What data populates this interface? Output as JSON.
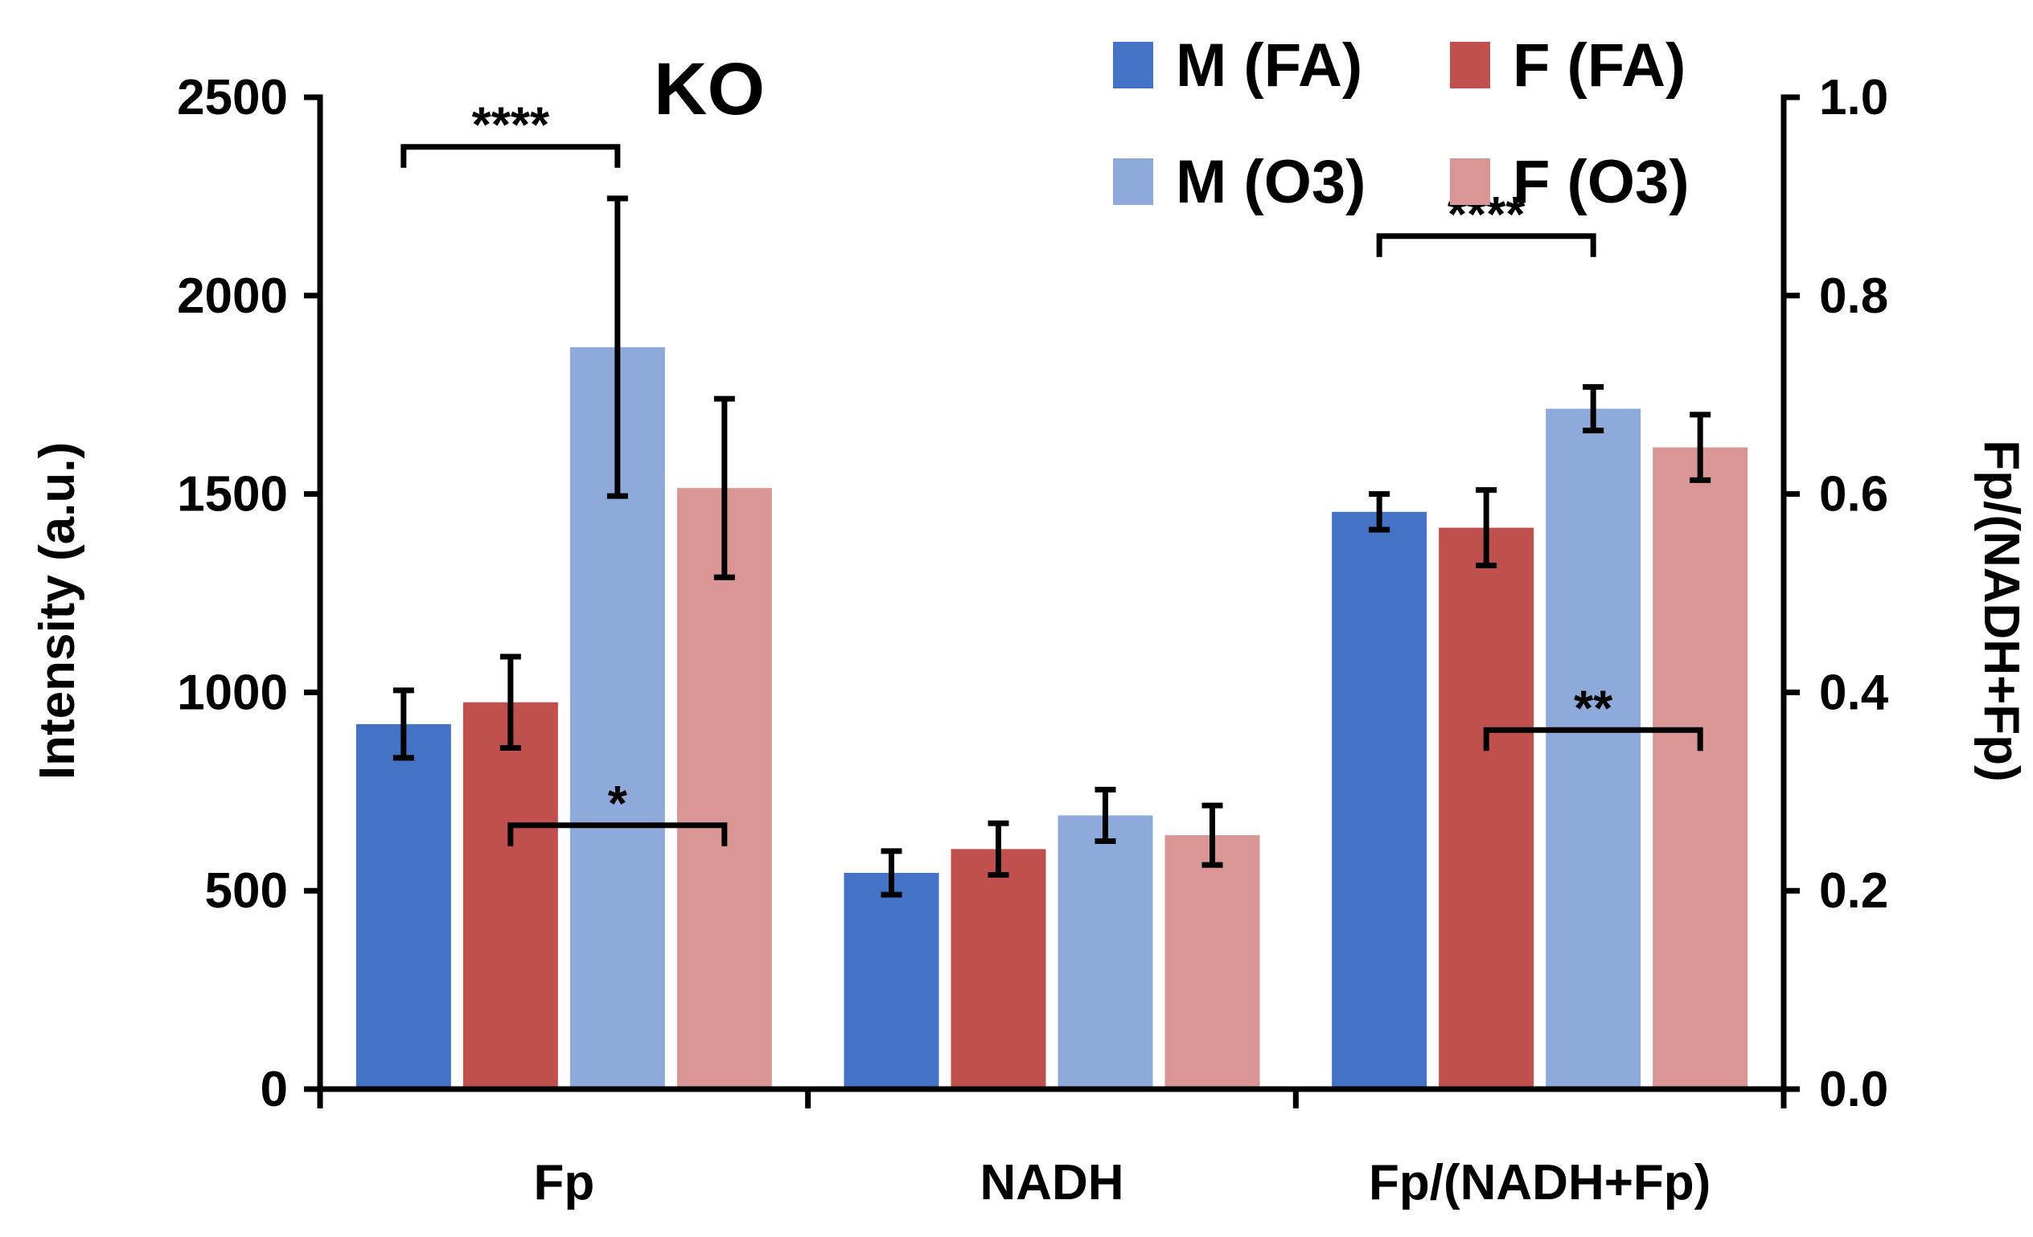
{
  "chart_data": {
    "type": "bar",
    "title": "KO",
    "categories": [
      "Fp",
      "NADH",
      "Fp/(NADH+Fp)"
    ],
    "ylabel": "Intensity (a.u.)",
    "ylabel_right": "Fp/(NADH+Fp)",
    "ylim": [
      0,
      2500
    ],
    "ylim_right": [
      0.0,
      1.0
    ],
    "yticks": [
      "0",
      "500",
      "1000",
      "1500",
      "2000",
      "2500"
    ],
    "yticks_right": [
      "0.0",
      "0.2",
      "0.4",
      "0.6",
      "0.8",
      "1.0"
    ],
    "grid": false,
    "legend_position": "top-right",
    "series": [
      {
        "name": "M (FA)",
        "color": "#4472C4",
        "values": [
          920,
          545,
          0.582
        ],
        "errors": [
          85,
          55,
          0.018
        ]
      },
      {
        "name": "F (FA)",
        "color": "#C0504D",
        "values": [
          975,
          605,
          0.566
        ],
        "errors": [
          115,
          65,
          0.038
        ]
      },
      {
        "name": "M (O3)",
        "color": "#8EAADB",
        "values": [
          1870,
          690,
          0.686
        ],
        "errors": [
          375,
          65,
          0.022
        ]
      },
      {
        "name": "F (O3)",
        "color": "#DA9694",
        "values": [
          1515,
          640,
          0.647
        ],
        "errors": [
          225,
          75,
          0.033
        ]
      }
    ],
    "axis_for_category": [
      "left",
      "left",
      "right"
    ],
    "significance": [
      {
        "label": "****",
        "category": 0,
        "from_series": 0,
        "to_series": 2,
        "placement": "above",
        "value": 2375
      },
      {
        "label": "*",
        "category": 0,
        "from_series": 1,
        "to_series": 3,
        "placement": "inside",
        "value": 665
      },
      {
        "label": "****",
        "category": 2,
        "from_series": 0,
        "to_series": 2,
        "placement": "above",
        "value": 2150
      },
      {
        "label": "**",
        "category": 2,
        "from_series": 1,
        "to_series": 3,
        "placement": "inside",
        "value": 905
      }
    ]
  }
}
